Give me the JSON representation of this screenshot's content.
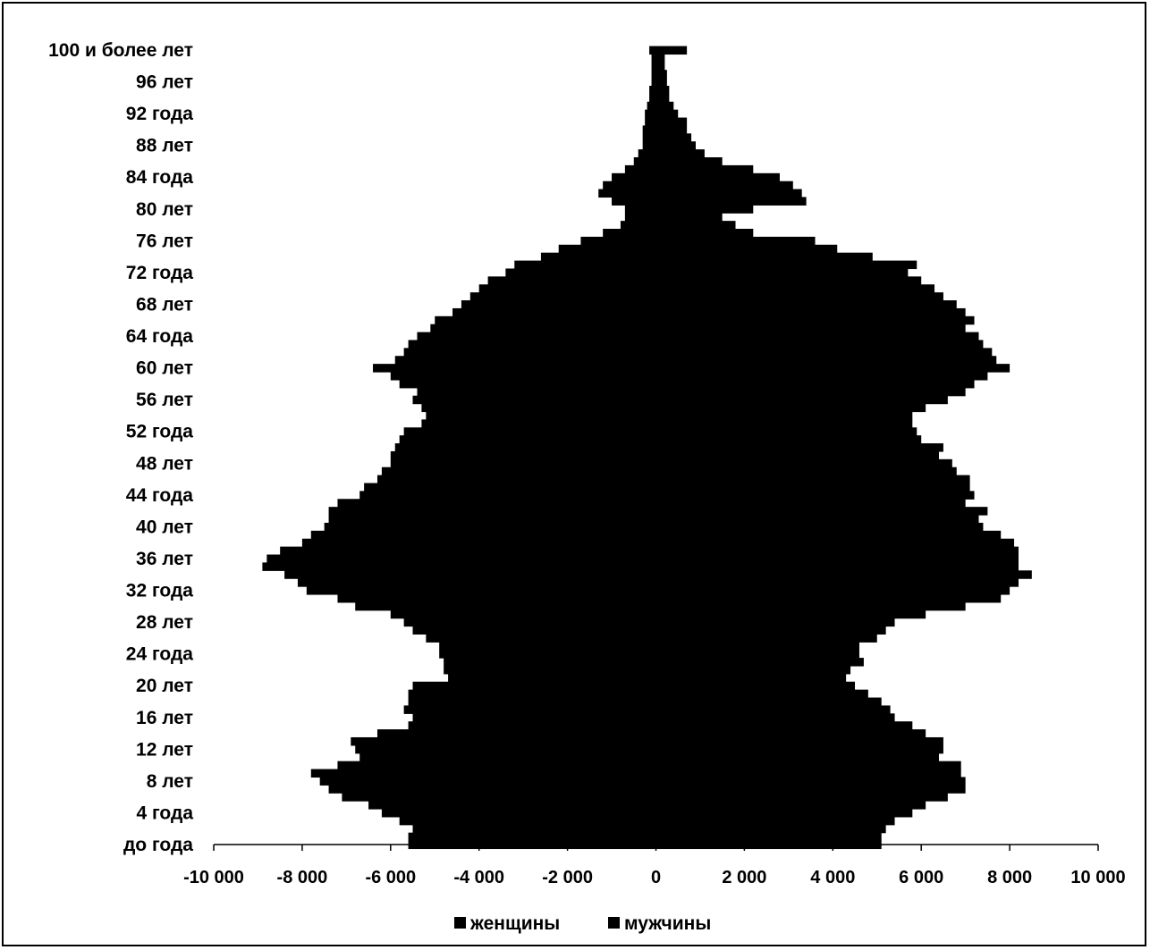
{
  "chart_data": {
    "type": "bar",
    "orientation": "horizontal",
    "subtype": "population-pyramid",
    "title": "",
    "xlabel": "",
    "ylabel": "",
    "xlim": [
      -10000,
      10000
    ],
    "x_ticks": [
      -10000,
      -8000,
      -6000,
      -4000,
      -2000,
      0,
      2000,
      4000,
      6000,
      8000,
      10000
    ],
    "x_tick_labels": [
      "-10 000",
      "-8 000",
      "-6 000",
      "-4 000",
      "-2 000",
      "0",
      "2 000",
      "4 000",
      "6 000",
      "8 000",
      "10 000"
    ],
    "y_tick_labels": [
      "до года",
      "4 года",
      "8 лет",
      "12 лет",
      "16 лет",
      "20 лет",
      "24 года",
      "28 лет",
      "32 года",
      "36 лет",
      "40 лет",
      "44 года",
      "48 лет",
      "52 года",
      "56 лет",
      "60 лет",
      "64 года",
      "68 лет",
      "72 года",
      "76 лет",
      "80 лет",
      "84 года",
      "88 лет",
      "92 года",
      "96 лет",
      "100 и более лет"
    ],
    "y_tick_ages": [
      0,
      4,
      8,
      12,
      16,
      20,
      24,
      28,
      32,
      36,
      40,
      44,
      48,
      52,
      56,
      60,
      64,
      68,
      72,
      76,
      80,
      84,
      88,
      92,
      96,
      100
    ],
    "ages": [
      0,
      1,
      2,
      3,
      4,
      5,
      6,
      7,
      8,
      9,
      10,
      11,
      12,
      13,
      14,
      15,
      16,
      17,
      18,
      19,
      20,
      21,
      22,
      23,
      24,
      25,
      26,
      27,
      28,
      29,
      30,
      31,
      32,
      33,
      34,
      35,
      36,
      37,
      38,
      39,
      40,
      41,
      42,
      43,
      44,
      45,
      46,
      47,
      48,
      49,
      50,
      51,
      52,
      53,
      54,
      55,
      56,
      57,
      58,
      59,
      60,
      61,
      62,
      63,
      64,
      65,
      66,
      67,
      68,
      69,
      70,
      71,
      72,
      73,
      74,
      75,
      76,
      77,
      78,
      79,
      80,
      81,
      82,
      83,
      84,
      85,
      86,
      87,
      88,
      89,
      90,
      91,
      92,
      93,
      94,
      95,
      96,
      97,
      98,
      99,
      100
    ],
    "legend_position": "bottom",
    "grid": false,
    "series": [
      {
        "name": "женщины",
        "color": "#000000",
        "values": [
          -5600,
          -5600,
          -5500,
          -5800,
          -6200,
          -6500,
          -7100,
          -7400,
          -7600,
          -7800,
          -7200,
          -6700,
          -6800,
          -6900,
          -6300,
          -5600,
          -5500,
          -5700,
          -5600,
          -5600,
          -5500,
          -4700,
          -4800,
          -4800,
          -4900,
          -4900,
          -5200,
          -5500,
          -5700,
          -6000,
          -6800,
          -7200,
          -7900,
          -8100,
          -8400,
          -8900,
          -8800,
          -8500,
          -8000,
          -7800,
          -7500,
          -7400,
          -7400,
          -7200,
          -6700,
          -6600,
          -6300,
          -6200,
          -6000,
          -6000,
          -5900,
          -5800,
          -5700,
          -5300,
          -5200,
          -5300,
          -5500,
          -5400,
          -5800,
          -6000,
          -6400,
          -5900,
          -5700,
          -5600,
          -5400,
          -5100,
          -5000,
          -4600,
          -4400,
          -4200,
          -4000,
          -3800,
          -3400,
          -3200,
          -2600,
          -2200,
          -1700,
          -1200,
          -800,
          -700,
          -700,
          -1000,
          -1300,
          -1200,
          -1000,
          -700,
          -500,
          -400,
          -300,
          -300,
          -300,
          -250,
          -250,
          -200,
          -150,
          -150,
          -100,
          -100,
          -100,
          -100,
          -150
        ]
      },
      {
        "name": "мужчины",
        "color": "#000000",
        "values": [
          5100,
          5100,
          5200,
          5400,
          5800,
          6100,
          6600,
          7000,
          7000,
          6900,
          6900,
          6400,
          6500,
          6500,
          6100,
          5800,
          5400,
          5300,
          5100,
          4800,
          4500,
          4300,
          4400,
          4700,
          4600,
          4600,
          5000,
          5200,
          5400,
          6100,
          7000,
          7800,
          8000,
          8200,
          8500,
          8200,
          8200,
          8200,
          8100,
          7800,
          7400,
          7300,
          7500,
          7000,
          7200,
          7100,
          7100,
          6800,
          6700,
          6400,
          6500,
          6000,
          5900,
          5800,
          5800,
          6100,
          6600,
          7000,
          7200,
          7500,
          8000,
          7700,
          7600,
          7400,
          7300,
          7000,
          7200,
          7000,
          6800,
          6500,
          6300,
          6000,
          5700,
          5900,
          4900,
          4100,
          3600,
          2200,
          1800,
          1500,
          2200,
          3400,
          3300,
          3100,
          2800,
          2200,
          1500,
          1100,
          900,
          800,
          700,
          700,
          500,
          400,
          300,
          300,
          250,
          250,
          200,
          200,
          700
        ]
      }
    ]
  }
}
